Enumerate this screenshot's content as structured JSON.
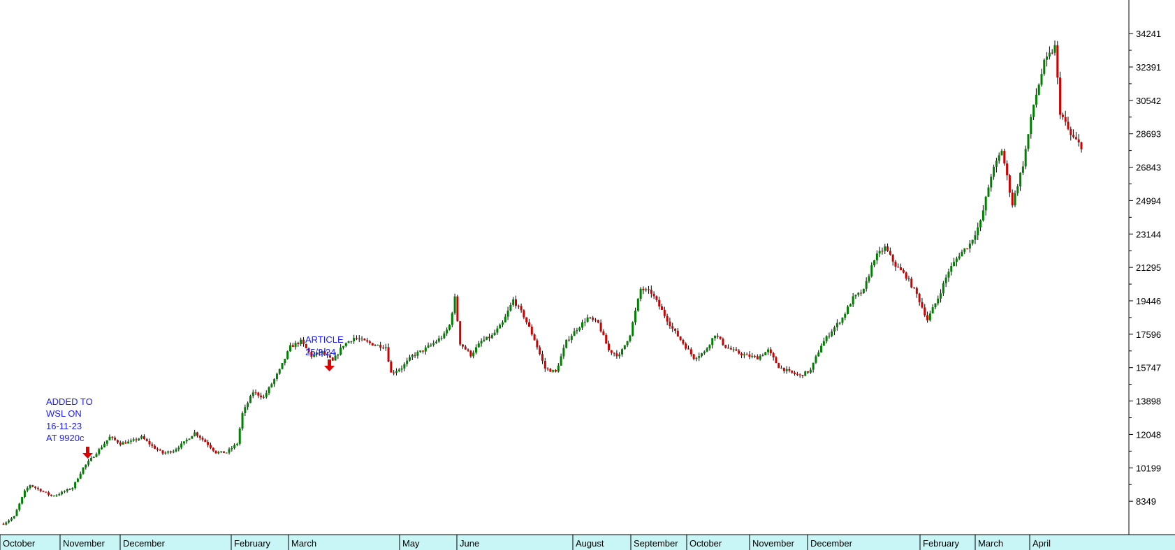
{
  "chart_data": {
    "type": "candlestick",
    "title": "",
    "xlabel": "",
    "ylabel": "",
    "ylim": [
      6500,
      36100
    ],
    "y_ticks": [
      8349,
      10199,
      12048,
      13898,
      15747,
      17596,
      19446,
      21295,
      23144,
      24994,
      26843,
      28693,
      30542,
      32391,
      34241
    ],
    "x_months": [
      "October",
      "November",
      "December",
      "February",
      "March",
      "May",
      "June",
      "August",
      "September",
      "October",
      "November",
      "December",
      "February",
      "March",
      "April"
    ],
    "up_color": "#008000",
    "down_color": "#d00000",
    "axis_band_color": "#c8f5f5",
    "grid": false,
    "close_path": [
      [
        0,
        7100
      ],
      [
        2,
        7500
      ],
      [
        4,
        8900
      ],
      [
        5,
        9250
      ],
      [
        8,
        8800
      ],
      [
        9,
        8650
      ],
      [
        10,
        8700
      ],
      [
        13,
        9100
      ],
      [
        15,
        10200
      ],
      [
        18,
        11200
      ],
      [
        20,
        11900
      ],
      [
        22,
        11550
      ],
      [
        24,
        11650
      ],
      [
        26,
        11900
      ],
      [
        28,
        11400
      ],
      [
        30,
        11000
      ],
      [
        32,
        11150
      ],
      [
        34,
        11600
      ],
      [
        36,
        12150
      ],
      [
        38,
        11650
      ],
      [
        40,
        11050
      ],
      [
        42,
        11050
      ],
      [
        44,
        11550
      ],
      [
        45,
        13200
      ],
      [
        47,
        14400
      ],
      [
        49,
        14100
      ],
      [
        52,
        15600
      ],
      [
        54,
        16900
      ],
      [
        56,
        17200
      ],
      [
        58,
        16400
      ],
      [
        60,
        16600
      ],
      [
        62,
        16100
      ],
      [
        64,
        17000
      ],
      [
        66,
        17400
      ],
      [
        68,
        17200
      ],
      [
        70,
        17000
      ],
      [
        72,
        16900
      ],
      [
        73,
        15450
      ],
      [
        75,
        15750
      ],
      [
        77,
        16400
      ],
      [
        79,
        16700
      ],
      [
        81,
        17100
      ],
      [
        83,
        17550
      ],
      [
        84,
        18100
      ],
      [
        85,
        19600
      ],
      [
        86,
        17100
      ],
      [
        88,
        16450
      ],
      [
        90,
        17200
      ],
      [
        92,
        17500
      ],
      [
        94,
        18200
      ],
      [
        96,
        19500
      ],
      [
        98,
        18600
      ],
      [
        100,
        17300
      ],
      [
        102,
        15700
      ],
      [
        104,
        15500
      ],
      [
        106,
        17200
      ],
      [
        108,
        17900
      ],
      [
        110,
        18500
      ],
      [
        112,
        18200
      ],
      [
        114,
        16700
      ],
      [
        116,
        16400
      ],
      [
        118,
        17600
      ],
      [
        120,
        20100
      ],
      [
        122,
        19900
      ],
      [
        124,
        18900
      ],
      [
        126,
        17900
      ],
      [
        128,
        17100
      ],
      [
        130,
        16300
      ],
      [
        132,
        16600
      ],
      [
        134,
        17600
      ],
      [
        136,
        16900
      ],
      [
        138,
        16600
      ],
      [
        140,
        16400
      ],
      [
        142,
        16300
      ],
      [
        144,
        16700
      ],
      [
        146,
        15800
      ],
      [
        148,
        15500
      ],
      [
        150,
        15300
      ],
      [
        152,
        15600
      ],
      [
        154,
        17000
      ],
      [
        156,
        17800
      ],
      [
        158,
        18500
      ],
      [
        160,
        19600
      ],
      [
        162,
        20000
      ],
      [
        164,
        21800
      ],
      [
        166,
        22400
      ],
      [
        168,
        21400
      ],
      [
        170,
        20800
      ],
      [
        172,
        19800
      ],
      [
        174,
        18400
      ],
      [
        176,
        19600
      ],
      [
        178,
        21100
      ],
      [
        180,
        22000
      ],
      [
        182,
        22600
      ],
      [
        184,
        23800
      ],
      [
        186,
        26400
      ],
      [
        188,
        27800
      ],
      [
        190,
        24800
      ],
      [
        192,
        27000
      ],
      [
        194,
        30300
      ],
      [
        196,
        32600
      ],
      [
        198,
        33500
      ],
      [
        199,
        29900
      ],
      [
        201,
        28600
      ],
      [
        203,
        28000
      ]
    ]
  },
  "annotations": {
    "added": [
      "ADDED TO",
      "WSL ON",
      "16-11-23",
      "AT 9920c"
    ],
    "article": [
      "ARTICLE",
      "25/3/24"
    ]
  }
}
